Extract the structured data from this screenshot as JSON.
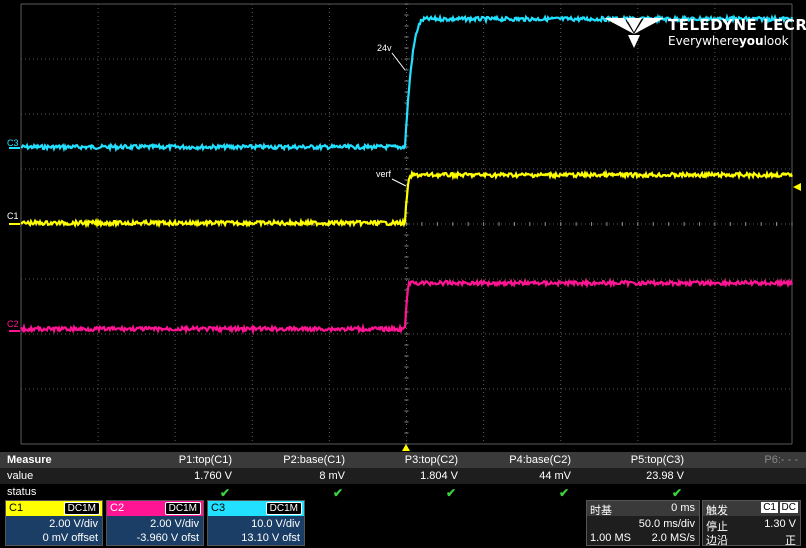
{
  "colors": {
    "c1": "#ffff00",
    "c2": "#ff1493",
    "c3": "#22e0ff",
    "grid": "#5a5a5a"
  },
  "logo": {
    "brand": "TELEDYNE LECROY",
    "tag_pre": "Everywhere",
    "tag_bold": "you",
    "tag_post": "look"
  },
  "labels": {
    "c3": "C3",
    "c1": "C1",
    "c2": "C2",
    "ann_24v": "24v",
    "ann_verf": "verf"
  },
  "measure": {
    "title": "Measure",
    "row_value": "value",
    "row_status": "status",
    "cols": [
      {
        "name": "P1:top(C1)",
        "value": "1.760 V",
        "status": "✔"
      },
      {
        "name": "P2:base(C1)",
        "value": "8 mV",
        "status": "✔"
      },
      {
        "name": "P3:top(C2)",
        "value": "1.804 V",
        "status": "✔"
      },
      {
        "name": "P4:base(C2)",
        "value": "44 mV",
        "status": "✔"
      },
      {
        "name": "P5:top(C3)",
        "value": "23.98 V",
        "status": "✔"
      },
      {
        "name": "P6:- - -",
        "value": "",
        "status": ""
      }
    ]
  },
  "channels": [
    {
      "name": "C1",
      "coupling": "DC1M",
      "vdiv": "2.00 V/div",
      "offset": "0 mV offset",
      "color": "#ffff00"
    },
    {
      "name": "C2",
      "coupling": "DC1M",
      "vdiv": "2.00 V/div",
      "offset": "-3.960 V ofst",
      "color": "#ff1493"
    },
    {
      "name": "C3",
      "coupling": "DC1M",
      "vdiv": "10.0 V/div",
      "offset": "13.10 V ofst",
      "color": "#22e0ff"
    }
  ],
  "timebase": {
    "title": "时基",
    "delay": "0 ms",
    "tdiv": "50.0 ms/div",
    "points": "1.00 MS",
    "rate": "2.0 MS/s"
  },
  "trigger": {
    "title": "触发",
    "src": "C1",
    "cpl": "DC",
    "mode": "停止",
    "level": "1.30 V",
    "edge_label": "边沿",
    "slope": "正"
  }
}
